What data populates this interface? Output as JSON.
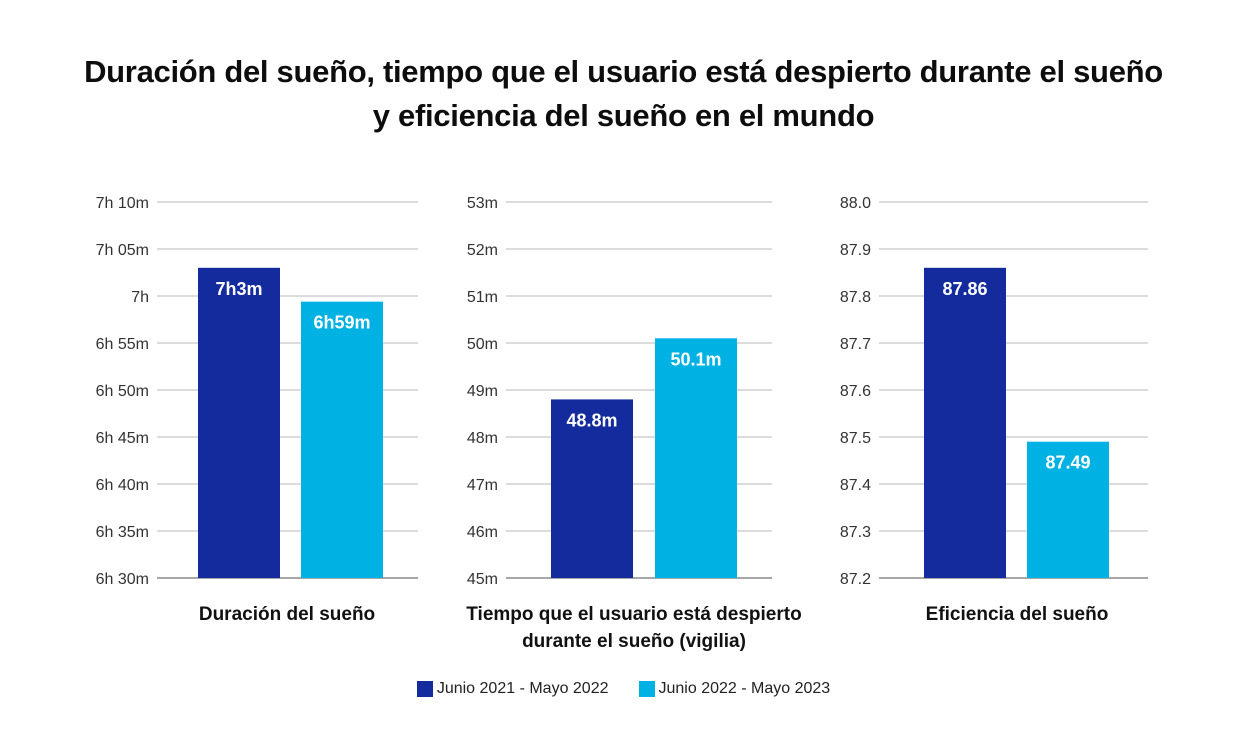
{
  "title_lines": [
    "Duración del sueño, tiempo que el usuario está despierto durante el sueño",
    "y eficiencia del sueño en el mundo"
  ],
  "colors": {
    "series1": "#142B9E",
    "series2": "#00B2E3",
    "grid": "#B9B9B9",
    "axis": "#8A8A8A"
  },
  "legend": [
    {
      "label": "Junio 2021 - Mayo 2022",
      "color": "#142B9E"
    },
    {
      "label": "Junio 2022 - Mayo 2023",
      "color": "#00B2E3"
    }
  ],
  "chart_data": [
    {
      "type": "bar",
      "xlabel_lines": [
        "Duración del sueño"
      ],
      "ylim": [
        390,
        430
      ],
      "ticks": [
        390,
        395,
        400,
        405,
        410,
        415,
        420,
        425,
        430
      ],
      "tick_labels": [
        "6h 30m",
        "6h 35m",
        "6h 40m",
        "6h 45m",
        "6h 50m",
        "6h 55m",
        "7h",
        "7h 05m",
        "7h 10m"
      ],
      "grid": true,
      "series": [
        {
          "name": "Junio 2021 - Mayo 2022",
          "value": 423,
          "label": "7h3m"
        },
        {
          "name": "Junio 2022 - Mayo 2023",
          "value": 419.4,
          "label": "6h59m"
        }
      ]
    },
    {
      "type": "bar",
      "xlabel_lines": [
        "Tiempo que el usuario está despierto",
        "durante el sueño (vigilia)"
      ],
      "ylim": [
        45,
        53
      ],
      "ticks": [
        45,
        46,
        47,
        48,
        49,
        50,
        51,
        52,
        53
      ],
      "tick_labels": [
        "45m",
        "46m",
        "47m",
        "48m",
        "49m",
        "50m",
        "51m",
        "52m",
        "53m"
      ],
      "grid": true,
      "series": [
        {
          "name": "Junio 2021 - Mayo 2022",
          "value": 48.8,
          "label": "48.8m"
        },
        {
          "name": "Junio 2022 - Mayo 2023",
          "value": 50.1,
          "label": "50.1m"
        }
      ]
    },
    {
      "type": "bar",
      "xlabel_lines": [
        "Eficiencia del sueño"
      ],
      "ylim": [
        87.2,
        88.0
      ],
      "ticks": [
        87.2,
        87.3,
        87.4,
        87.5,
        87.6,
        87.7,
        87.8,
        87.9,
        88.0
      ],
      "tick_labels": [
        "87.2",
        "87.3",
        "87.4",
        "87.5",
        "87.6",
        "87.7",
        "87.8",
        "87.9",
        "88.0"
      ],
      "grid": true,
      "series": [
        {
          "name": "Junio 2021 - Mayo 2022",
          "value": 87.86,
          "label": "87.86"
        },
        {
          "name": "Junio 2022 - Mayo 2023",
          "value": 87.49,
          "label": "87.49"
        }
      ]
    }
  ]
}
